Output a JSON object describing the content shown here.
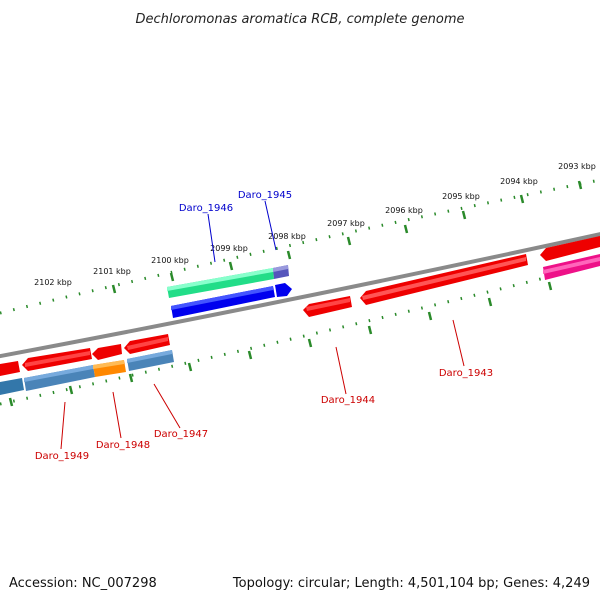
{
  "title": "Dechloromonas aromatica RCB, complete genome",
  "footer": {
    "accession": "Accession: NC_007298",
    "summary": "Topology: circular; Length: 4,501,104 bp; Genes: 4,249"
  },
  "colors": {
    "backbone": "#8a8a8a",
    "tick": "#2a8a2a",
    "forward_label": "#0000cc",
    "reverse_label": "#cc0000"
  },
  "tick_labels": [
    {
      "kbp": 2093,
      "label": "2093 kbp"
    },
    {
      "kbp": 2094,
      "label": "2094 kbp"
    },
    {
      "kbp": 2095,
      "label": "2095 kbp"
    },
    {
      "kbp": 2096,
      "label": "2096 kbp"
    },
    {
      "kbp": 2097,
      "label": "2097 kbp"
    },
    {
      "kbp": 2098,
      "label": "2098 kbp"
    },
    {
      "kbp": 2099,
      "label": "2099 kbp"
    },
    {
      "kbp": 2100,
      "label": "2100 kbp"
    },
    {
      "kbp": 2101,
      "label": "2101 kbp"
    },
    {
      "kbp": 2102,
      "label": "2102 kbp"
    }
  ],
  "genes": [
    {
      "name": "Daro_1945",
      "strand": "forward",
      "label": "Daro_1945"
    },
    {
      "name": "Daro_1946",
      "strand": "forward",
      "label": "Daro_1946"
    },
    {
      "name": "Daro_1943",
      "strand": "reverse",
      "label": "Daro_1943"
    },
    {
      "name": "Daro_1944",
      "strand": "reverse",
      "label": "Daro_1944"
    },
    {
      "name": "Daro_1947",
      "strand": "reverse",
      "label": "Daro_1947"
    },
    {
      "name": "Daro_1948",
      "strand": "reverse",
      "label": "Daro_1948"
    },
    {
      "name": "Daro_1949",
      "strand": "reverse",
      "label": "Daro_1949"
    }
  ]
}
